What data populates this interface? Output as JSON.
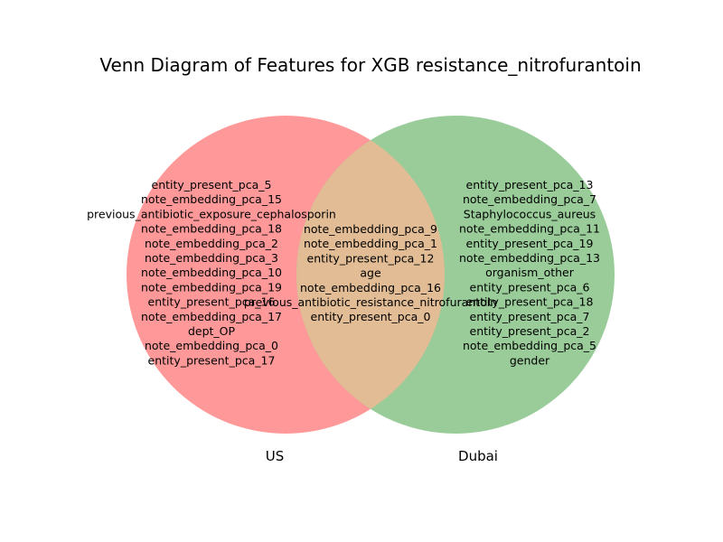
{
  "title": "Venn Diagram of Features for XGB resistance_nitrofurantoin",
  "colors": {
    "left_set": "#ff9999",
    "right_set": "#99cc99",
    "overlap": "#e1bc94"
  },
  "sets": {
    "left": {
      "label": "US",
      "only_items": [
        "entity_present_pca_5",
        "note_embedding_pca_15",
        "previous_antibiotic_exposure_cephalosporin",
        "note_embedding_pca_18",
        "note_embedding_pca_2",
        "note_embedding_pca_3",
        "note_embedding_pca_10",
        "note_embedding_pca_19",
        "entity_present_pca_16",
        "note_embedding_pca_17",
        "dept_OP",
        "note_embedding_pca_0",
        "entity_present_pca_17"
      ]
    },
    "right": {
      "label": "Dubai",
      "only_items": [
        "entity_present_pca_13",
        "note_embedding_pca_7",
        "Staphylococcus_aureus",
        "note_embedding_pca_11",
        "entity_present_pca_19",
        "note_embedding_pca_13",
        "organism_other",
        "entity_present_pca_6",
        "entity_present_pca_18",
        "entity_present_pca_7",
        "entity_present_pca_2",
        "note_embedding_pca_5",
        "gender"
      ]
    },
    "intersection": {
      "items": [
        "note_embedding_pca_9",
        "note_embedding_pca_1",
        "entity_present_pca_12",
        "age",
        "note_embedding_pca_16",
        "previous_antibiotic_resistance_nitrofurantoin",
        "entity_present_pca_0"
      ]
    }
  }
}
